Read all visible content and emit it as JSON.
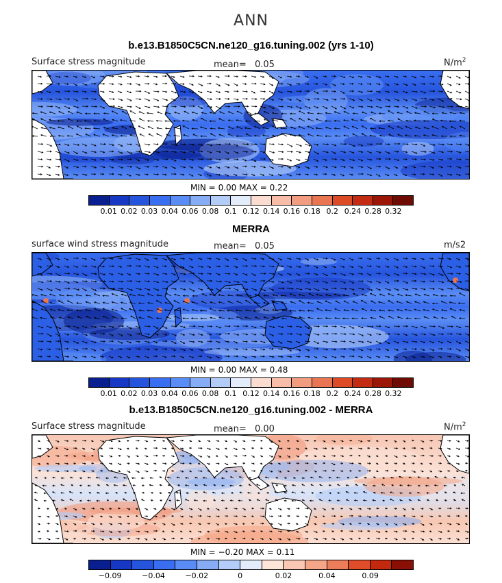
{
  "main_title": "ANN",
  "chart_data": [
    {
      "type": "heatmap",
      "title": "b.e13.B1850C5CN.ne120_g16.tuning.002 (yrs 1-10)",
      "field_label": "Surface stress magnitude",
      "mean_label": "mean=",
      "mean_value": "0.05",
      "units": "N/m",
      "units_sup": "2",
      "min_label": "MIN =",
      "min_value": "0.00",
      "max_label": "MAX =",
      "max_value": "0.22",
      "colorbar_ticks": [
        "0.01",
        "0.02",
        "0.03",
        "0.04",
        "0.06",
        "0.08",
        "0.1",
        "0.12",
        "0.14",
        "0.16",
        "0.18",
        "0.2",
        "0.24",
        "0.28",
        "0.32"
      ],
      "colorbar_colors": [
        "#0a1f8f",
        "#1638c4",
        "#2655dd",
        "#3a6ef0",
        "#5a8cf5",
        "#86acf5",
        "#b3cdf8",
        "#e2ecfb",
        "#fbdcd0",
        "#f8bda8",
        "#f29c80",
        "#ea7553",
        "#dd4a26",
        "#c32b13",
        "#9c1608",
        "#6e0b03"
      ],
      "overlay": "wind-stress vectors"
    },
    {
      "type": "heatmap",
      "title": "MERRA",
      "field_label": "surface wind stress magnitude",
      "mean_label": "mean=",
      "mean_value": "0.05",
      "units": "m/s2",
      "units_sup": "",
      "min_label": "MIN =",
      "min_value": "0.00",
      "max_label": "MAX =",
      "max_value": "0.48",
      "colorbar_ticks": [
        "0.01",
        "0.02",
        "0.03",
        "0.04",
        "0.06",
        "0.08",
        "0.1",
        "0.12",
        "0.14",
        "0.16",
        "0.18",
        "0.2",
        "0.24",
        "0.28",
        "0.32"
      ],
      "colorbar_colors": [
        "#0a1f8f",
        "#1638c4",
        "#2655dd",
        "#3a6ef0",
        "#5a8cf5",
        "#86acf5",
        "#b3cdf8",
        "#e2ecfb",
        "#fbdcd0",
        "#f8bda8",
        "#f29c80",
        "#ea7553",
        "#dd4a26",
        "#c32b13",
        "#9c1608",
        "#6e0b03"
      ],
      "overlay": "wind-stress vectors"
    },
    {
      "type": "heatmap",
      "title": "b.e13.B1850C5CN.ne120_g16.tuning.002 - MERRA",
      "field_label": "Surface stress magnitude",
      "mean_label": "mean=",
      "mean_value": "0.00",
      "units": "N/m",
      "units_sup": "2",
      "min_label": "MIN =",
      "min_value": "−0.20",
      "max_label": "MAX =",
      "max_value": "0.11",
      "colorbar_ticks": [
        "−0.09",
        "",
        "−0.04",
        "",
        "−0.02",
        "",
        "0",
        "",
        "0.02",
        "",
        "0.04",
        "",
        "0.09",
        ""
      ],
      "colorbar_tick_slots": [
        1,
        3,
        5,
        7,
        9,
        11,
        13
      ],
      "colorbar_colors": [
        "#0a1f8f",
        "#1638c4",
        "#2655dd",
        "#3a6ef0",
        "#5a8cf5",
        "#86acf5",
        "#b3cdf8",
        "#e2ecfb",
        "#fde5d8",
        "#fbc9b3",
        "#f5a688",
        "#ec7d5b",
        "#df4d2a",
        "#c2290f",
        "#8a1005"
      ],
      "overlay": "wind-stress difference vectors"
    }
  ]
}
